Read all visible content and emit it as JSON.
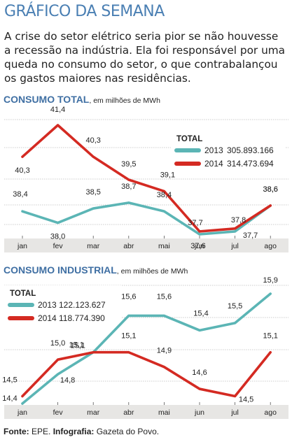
{
  "header": {
    "title": "GRÁFICO DA SEMANA",
    "intro": "A crise do setor elétrico seria pior se não houvesse a recessão na indústria. Ela foi responsável por uma queda no consumo do setor, o que contrabalançou os gastos maiores nas residências."
  },
  "footer": {
    "source_label": "Fonte:",
    "source_value": "EPE.",
    "infographic_label": "Infografia:",
    "infographic_value": "Gazeta do Povo."
  },
  "colors": {
    "accent": "#3f6fa3",
    "series_2013": "#5bb5b5",
    "series_2014": "#d42a22",
    "band": "#e7e6e4",
    "grid": "#bdbdbd"
  },
  "chart_data": [
    {
      "type": "line",
      "title": "CONSUMO TOTAL",
      "subtitle": ", em milhões de MWh",
      "categories": [
        "jan",
        "fev",
        "mar",
        "abr",
        "mai",
        "jun",
        "jul",
        "ago"
      ],
      "grid": true,
      "legend": {
        "title": "TOTAL",
        "placement": "top-right",
        "entries": [
          {
            "label": "2013",
            "value": "305.893.166"
          },
          {
            "label": "2014",
            "value": "314.473.694"
          }
        ]
      },
      "series": [
        {
          "name": "2013",
          "color": "#5bb5b5",
          "values": [
            38.4,
            38.0,
            38.5,
            38.7,
            38.4,
            37.6,
            37.7,
            38.6
          ],
          "labels": [
            "38,4",
            "38,0",
            "38,5",
            "38,7",
            "38,4",
            "37,6",
            "37,7",
            "38,6"
          ]
        },
        {
          "name": "2014",
          "color": "#d42a22",
          "values": [
            40.3,
            41.4,
            40.3,
            39.5,
            39.1,
            37.7,
            37.8,
            38.6
          ],
          "labels": [
            "40,3",
            "41,4",
            "40,3",
            "39,5",
            "39,1",
            "37,7",
            "37,8",
            "38,6"
          ]
        }
      ]
    },
    {
      "type": "line",
      "title": "CONSUMO INDUSTRIAL",
      "subtitle": ", em milhões de MWh",
      "categories": [
        "jan",
        "fev",
        "mar",
        "abr",
        "mai",
        "jun",
        "jul",
        "ago"
      ],
      "grid": true,
      "legend": {
        "title": "TOTAL",
        "placement": "top-left",
        "entries": [
          {
            "label": "2013",
            "value": "122.123.627"
          },
          {
            "label": "2014",
            "value": "118.774.390"
          }
        ]
      },
      "series": [
        {
          "name": "2013",
          "color": "#5bb5b5",
          "values": [
            14.4,
            14.8,
            15.1,
            15.6,
            15.6,
            15.4,
            15.5,
            15.9
          ],
          "labels": [
            "14,4",
            "14,8",
            "15,1",
            "15,6",
            "15,6",
            "15,4",
            "15,5",
            "15,9"
          ]
        },
        {
          "name": "2014",
          "color": "#d42a22",
          "values": [
            14.5,
            15.0,
            15.1,
            15.1,
            14.9,
            14.6,
            14.5,
            15.1
          ],
          "labels": [
            "14,5",
            "15,0",
            "15,1",
            "15,1",
            "14,9",
            "14,6",
            "14,5",
            "15,1"
          ]
        }
      ]
    }
  ]
}
